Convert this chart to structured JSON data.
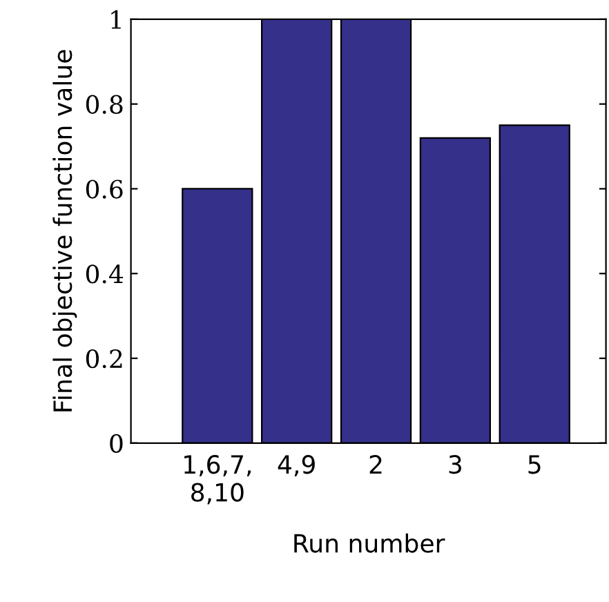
{
  "chart_data": {
    "type": "bar",
    "xlabel": "Run number",
    "ylabel": "Final objective function value",
    "categories": [
      "1,6,7,\n8,10",
      "4,9",
      "2",
      "3",
      "5"
    ],
    "values": [
      0.6,
      1,
      1,
      0.72,
      0.75
    ],
    "color": "#35308a",
    "ylim": [
      0,
      1
    ],
    "yticks": [
      0,
      0.2,
      0.4,
      0.6,
      0.8,
      1
    ],
    "grid": false
  }
}
